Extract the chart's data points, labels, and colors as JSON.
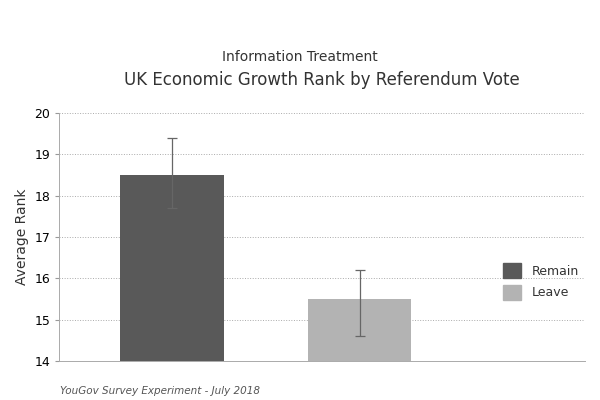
{
  "title": "UK Economic Growth Rank by Referendum Vote",
  "subtitle": "Information Treatment",
  "ylabel": "Average Rank",
  "categories": [
    "Remain",
    "Leave"
  ],
  "values": [
    18.5,
    15.5
  ],
  "errors_upper": [
    0.9,
    0.7
  ],
  "errors_lower": [
    0.8,
    0.9
  ],
  "bar_colors": [
    "#595959",
    "#b3b3b3"
  ],
  "ylim": [
    14,
    20
  ],
  "yticks": [
    14,
    15,
    16,
    17,
    18,
    19,
    20
  ],
  "bar_width": 0.55,
  "bar_positions": [
    1,
    2
  ],
  "xlim": [
    0.4,
    3.2
  ],
  "legend_labels": [
    "Remain",
    "Leave"
  ],
  "legend_colors": [
    "#595959",
    "#b3b3b3"
  ],
  "footnote": "YouGov Survey Experiment - July 2018",
  "background_color": "#ffffff",
  "grid_color": "#aaaaaa",
  "error_color": "#666666",
  "title_fontsize": 12,
  "subtitle_fontsize": 10,
  "ylabel_fontsize": 10,
  "tick_fontsize": 9,
  "footnote_fontsize": 7.5
}
